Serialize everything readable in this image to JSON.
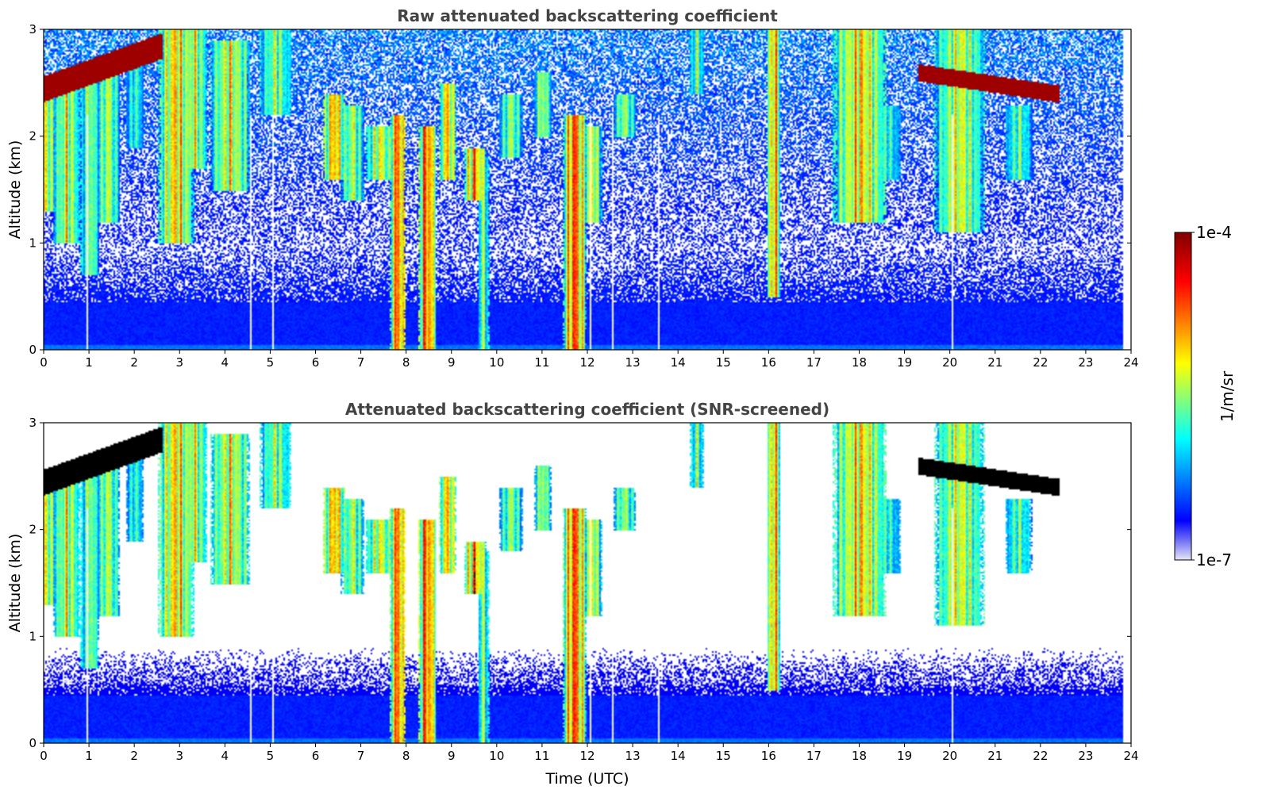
{
  "chart_data": [
    {
      "type": "heatmap",
      "title": "Raw attenuated backscattering coefficient",
      "xlabel": "",
      "ylabel": "Altitude (km)",
      "xlim": [
        0,
        24
      ],
      "ylim": [
        0,
        3
      ],
      "xticks": [
        "0",
        "1",
        "2",
        "3",
        "4",
        "5",
        "6",
        "7",
        "8",
        "9",
        "10",
        "11",
        "12",
        "13",
        "14",
        "15",
        "16",
        "17",
        "18",
        "19",
        "20",
        "21",
        "22",
        "23",
        "24"
      ],
      "yticks": [
        "0",
        "1",
        "2",
        "3"
      ],
      "screened": false
    },
    {
      "type": "heatmap",
      "title": "Attenuated backscattering coefficient (SNR-screened)",
      "xlabel": "Time (UTC)",
      "ylabel": "Altitude (km)",
      "xlim": [
        0,
        24
      ],
      "ylim": [
        0,
        3
      ],
      "xticks": [
        "0",
        "1",
        "2",
        "3",
        "4",
        "5",
        "6",
        "7",
        "8",
        "9",
        "10",
        "11",
        "12",
        "13",
        "14",
        "15",
        "16",
        "17",
        "18",
        "19",
        "20",
        "21",
        "22",
        "23",
        "24"
      ],
      "yticks": [
        "0",
        "1",
        "2",
        "3"
      ],
      "screened": true
    }
  ],
  "colorbar": {
    "label": "1/m/sr",
    "max_label": "1e-4",
    "min_label": "1e-7",
    "range": [
      1e-07,
      0.0001
    ],
    "scale": "log",
    "colormap": "jet"
  },
  "data_end_hour": 23.8,
  "features": {
    "boundary_layer_top_km": 0.45,
    "cloud_columns": [
      {
        "t": 0.0,
        "top": 2.5,
        "bottom": 1.3,
        "w": 0.25,
        "v": 0.75
      },
      {
        "t": 0.5,
        "top": 2.6,
        "bottom": 1.0,
        "w": 0.3,
        "v": 0.7
      },
      {
        "t": 1.0,
        "top": 2.7,
        "bottom": 0.7,
        "w": 0.2,
        "v": 0.65
      },
      {
        "t": 1.4,
        "top": 2.6,
        "bottom": 1.2,
        "w": 0.25,
        "v": 0.65
      },
      {
        "t": 2.0,
        "top": 2.8,
        "bottom": 1.9,
        "w": 0.2,
        "v": 0.5
      },
      {
        "t": 2.9,
        "top": 3.0,
        "bottom": 1.0,
        "w": 0.4,
        "v": 0.8
      },
      {
        "t": 3.3,
        "top": 3.0,
        "bottom": 1.7,
        "w": 0.3,
        "v": 0.7
      },
      {
        "t": 4.1,
        "top": 2.9,
        "bottom": 1.5,
        "w": 0.45,
        "v": 0.72
      },
      {
        "t": 5.1,
        "top": 3.0,
        "bottom": 2.2,
        "w": 0.35,
        "v": 0.62
      },
      {
        "t": 6.4,
        "top": 2.4,
        "bottom": 1.6,
        "w": 0.25,
        "v": 0.85
      },
      {
        "t": 6.8,
        "top": 2.3,
        "bottom": 1.4,
        "w": 0.25,
        "v": 0.65
      },
      {
        "t": 7.4,
        "top": 2.1,
        "bottom": 1.6,
        "w": 0.3,
        "v": 0.72
      },
      {
        "t": 7.8,
        "top": 2.2,
        "bottom": 0.0,
        "w": 0.18,
        "v": 0.95
      },
      {
        "t": 8.45,
        "top": 2.1,
        "bottom": 0.0,
        "w": 0.2,
        "v": 0.95
      },
      {
        "t": 8.9,
        "top": 2.5,
        "bottom": 1.6,
        "w": 0.2,
        "v": 0.82
      },
      {
        "t": 9.5,
        "top": 1.9,
        "bottom": 1.4,
        "w": 0.25,
        "v": 0.88
      },
      {
        "t": 9.7,
        "top": 1.8,
        "bottom": 0.0,
        "w": 0.12,
        "v": 0.6
      },
      {
        "t": 10.3,
        "top": 2.4,
        "bottom": 1.8,
        "w": 0.25,
        "v": 0.62
      },
      {
        "t": 11.0,
        "top": 2.6,
        "bottom": 2.0,
        "w": 0.2,
        "v": 0.65
      },
      {
        "t": 11.7,
        "top": 2.2,
        "bottom": 0.0,
        "w": 0.25,
        "v": 0.95
      },
      {
        "t": 12.1,
        "top": 2.1,
        "bottom": 1.2,
        "w": 0.2,
        "v": 0.72
      },
      {
        "t": 12.8,
        "top": 2.4,
        "bottom": 2.0,
        "w": 0.25,
        "v": 0.62
      },
      {
        "t": 14.4,
        "top": 3.0,
        "bottom": 2.4,
        "w": 0.15,
        "v": 0.58
      },
      {
        "t": 16.1,
        "top": 3.0,
        "bottom": 0.5,
        "w": 0.15,
        "v": 0.85
      },
      {
        "t": 18.0,
        "top": 3.0,
        "bottom": 1.2,
        "w": 0.6,
        "v": 0.78
      },
      {
        "t": 18.6,
        "top": 2.3,
        "bottom": 1.6,
        "w": 0.3,
        "v": 0.5
      },
      {
        "t": 20.2,
        "top": 3.0,
        "bottom": 1.1,
        "w": 0.55,
        "v": 0.7
      },
      {
        "t": 21.5,
        "top": 2.3,
        "bottom": 1.6,
        "w": 0.3,
        "v": 0.55
      }
    ],
    "elevated_layers": [
      {
        "t0": 0.0,
        "t1": 2.6,
        "km0": 2.45,
        "km1": 2.85,
        "thickness": 0.12
      },
      {
        "t0": 19.3,
        "t1": 22.4,
        "km0": 2.6,
        "km1": 2.4,
        "thickness": 0.08
      }
    ],
    "gaps": [
      0.95,
      4.55,
      5.05,
      5.55,
      12.05,
      12.55,
      13.05,
      13.55,
      20.05
    ]
  }
}
